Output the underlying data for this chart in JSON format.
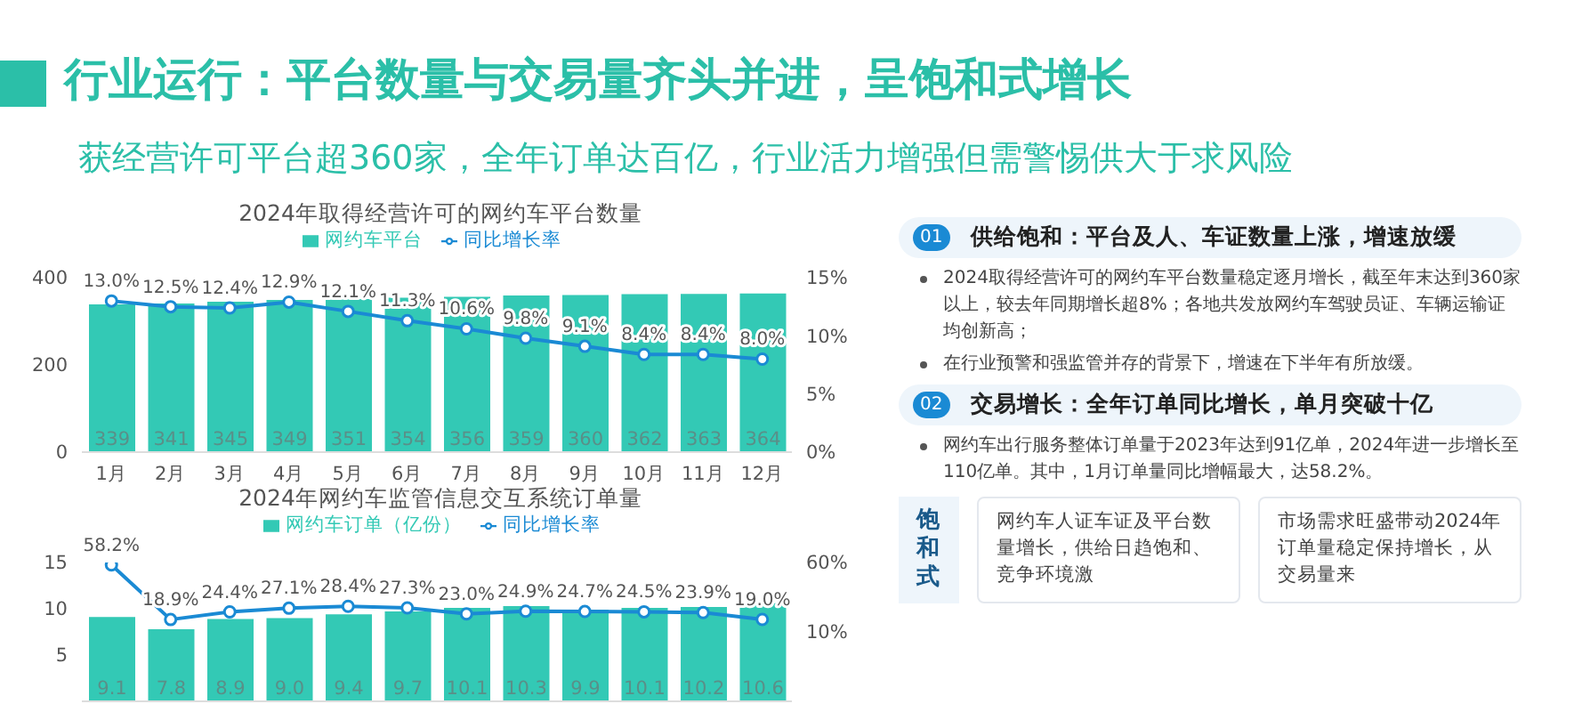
{
  "chart_data": [
    {
      "type": "other",
      "title": "行业运行：平台数量与交易量齐头并进，呈饱和式增长",
      "subtitle": "获经营许可平台超360家，全年订单达百亿，行业活力增强但需警惕供大于求风险",
      "annotations": [
        "01",
        "供给饱和：平台及人、车证数量上涨，增速放缓",
        "2024取得经营许可的网约车平台数量稳定逐月增长，截至年末达到360家以上，较去年同期增长超8%；各地共发放网约车驾驶员证、车辆运输证均创新高；",
        "在行业预警和强监管并存的背景下，增速在下半年有所放缓。",
        "02",
        "交易增长：全年订单同比增长，单月突破十亿",
        "网约车出行服务整体订单量于2023年达到91亿单，2024年进一步增长至110亿单。其中，1月订单量同比增幅最大，达58.2%。",
        "饱和式",
        "网约车人证车证及平台数量增长，供给日趋饱和、竞争环境激",
        "市场需求旺盛带动2024年订单量稳定保持增长，从交易量来"
      ]
    },
    {
      "type": "bar",
      "title": "2024年取得经营许可的网约车平台数量",
      "categories": [
        "1月",
        "2月",
        "3月",
        "4月",
        "5月",
        "6月",
        "7月",
        "8月",
        "9月",
        "10月",
        "11月",
        "12月"
      ],
      "series": [
        {
          "name": "网约车平台",
          "color": "#33c9b5",
          "values": [
            339,
            341,
            345,
            349,
            351,
            354,
            356,
            359,
            360,
            362,
            363,
            364
          ],
          "value_labels": [
            "339",
            "341",
            "345",
            "349",
            "351",
            "354",
            "356",
            "359",
            "360",
            "362",
            "363",
            "364"
          ]
        },
        {
          "name": "同比增长率",
          "type": "line",
          "axis": "y2",
          "color": "#1a8ad4",
          "values": [
            13.0,
            12.5,
            12.4,
            12.9,
            12.1,
            11.3,
            10.6,
            9.8,
            9.1,
            8.4,
            8.4,
            8.0
          ],
          "value_labels": [
            "13.0%",
            "12.5%",
            "12.4%",
            "12.9%",
            "12.1%",
            "11.3%",
            "10.6%",
            "9.8%",
            "9.1%",
            "8.4%",
            "8.4%",
            "8.0%"
          ]
        }
      ],
      "ylim": [
        0,
        400
      ],
      "yticks": [
        0,
        200,
        400
      ],
      "y2lim": [
        0,
        15
      ],
      "y2ticks": [
        {
          "value": 0,
          "label": "0%"
        },
        {
          "value": 5,
          "label": "5%"
        },
        {
          "value": 10,
          "label": "10%"
        },
        {
          "value": 15,
          "label": "15%"
        }
      ],
      "legend": "top",
      "marker": "circle"
    },
    {
      "type": "bar",
      "title": "2024年网约车监管信息交互系统订单量",
      "categories": [
        null,
        null,
        null,
        null,
        null,
        null,
        null,
        null,
        null,
        null,
        null,
        null
      ],
      "series": [
        {
          "name": "网约车订单（亿份）",
          "color": "#33c9b5",
          "values": [
            9.1,
            7.8,
            8.9,
            9.0,
            9.4,
            9.7,
            10.1,
            10.3,
            9.9,
            10.1,
            10.2,
            10.6
          ],
          "value_labels": [
            "9.1",
            "7.8",
            "8.9",
            "9.0",
            "9.4",
            "9.7",
            "10.1",
            "10.3",
            "9.9",
            "10.1",
            "10.2",
            "10.6"
          ]
        },
        {
          "name": "同比增长率",
          "type": "line",
          "axis": "y2",
          "color": "#1a8ad4",
          "values": [
            58.2,
            18.9,
            24.4,
            27.1,
            28.4,
            27.3,
            23.0,
            24.9,
            24.7,
            24.5,
            23.9,
            19.0
          ],
          "value_labels": [
            "58.2%",
            "18.9%",
            "24.4%",
            "27.1%",
            "28.4%",
            "27.3%",
            "23.0%",
            "24.9%",
            "24.7%",
            "24.5%",
            "23.9%",
            "19.0%"
          ]
        }
      ],
      "ylim": [
        0,
        15
      ],
      "yticks": [
        5,
        10,
        15
      ],
      "y2lim": [
        -40,
        60
      ],
      "y2ticks": [
        {
          "value": 10,
          "label": "10%"
        },
        {
          "value": 60,
          "label": "60%"
        }
      ],
      "legend": "top",
      "marker": "circle"
    }
  ]
}
